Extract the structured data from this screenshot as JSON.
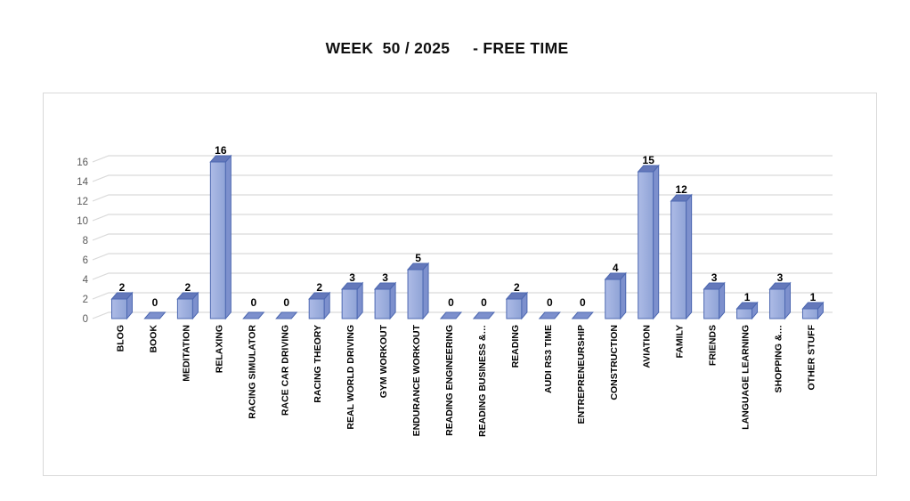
{
  "title": "WEEK  50 / 2025     - FREE TIME",
  "chart_data": {
    "type": "bar",
    "style": "3d-column",
    "title": "WEEK  50 / 2025     - FREE TIME",
    "xlabel": "",
    "ylabel": "",
    "categories": [
      "BLOG",
      "BOOK",
      "MEDITATION",
      "RELAXING",
      "RACING SIMULATOR",
      "RACE CAR DRIVING",
      "RACING THEORY",
      "REAL WORLD DRIVING",
      "GYM WORKOUT",
      "ENDURANCE WORKOUT",
      "READING ENGINEERING",
      "READING BUSINESS &…",
      "READING",
      "AUDI RS3 TIME",
      "ENTREPRENEURSHIP",
      "CONSTRUCTION",
      "AVIATION",
      "FAMILY",
      "FRIENDS",
      "LANGUAGE LEARNING",
      "SHOPPING &…",
      "OTHER STUFF"
    ],
    "values": [
      2,
      0,
      2,
      16,
      0,
      0,
      2,
      3,
      3,
      5,
      0,
      0,
      2,
      0,
      0,
      4,
      15,
      12,
      3,
      1,
      3,
      1
    ],
    "ylim": [
      0,
      16
    ],
    "yticks": [
      0,
      2,
      4,
      6,
      8,
      10,
      12,
      14,
      16
    ],
    "grid": true,
    "legend_position": "none",
    "data_labels": true,
    "colors": {
      "bar_front_light": "#adbbe6",
      "bar_front": "#8fa3d6",
      "bar_side": "#7d90cd",
      "bar_top": "#6478ba",
      "bar_border": "#4d68b1",
      "gridline": "#d9d9d9",
      "axis_text": "#595959",
      "label_text": "#000000",
      "chart_border": "#d9d9d9",
      "title_text": "#111111"
    }
  }
}
